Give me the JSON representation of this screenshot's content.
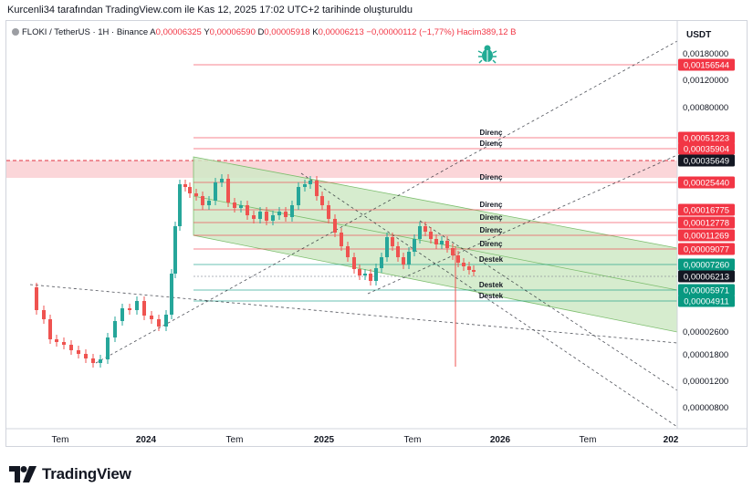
{
  "caption": "Kurcenli34 tarafından TradingView.com ile Kas 12, 2025 17:02 UTC+2 tarihinde oluşturuldu",
  "symbol": {
    "name": "FLOKI / TetherUS · 1H · Binance",
    "o_label": "A",
    "o_value": "0,00006325",
    "h_label": "Y",
    "h_value": "0,00006590",
    "l_label": "D",
    "l_value": "0,00005918",
    "c_label": "K",
    "c_value": "0,00006213",
    "change": "−0,00000112 (−1,77%)",
    "vol_label": "Hacim",
    "vol_value": "389,12 B"
  },
  "currency": "USDT",
  "brand": "TradingView",
  "colors": {
    "resistance": "#f23645",
    "support": "#089981",
    "channel_fill": "#cfe9c6",
    "zone_fill": "#fbd6d9",
    "candle_up": "#26a69a",
    "candle_down": "#ef5350",
    "current_price": "#131722"
  },
  "chart_data": {
    "type": "candlestick",
    "scale": "log",
    "ylim": [
      5e-06,
      0.0025
    ],
    "x_ticks": [
      "Tem",
      "2024",
      "Tem",
      "2025",
      "Tem",
      "2026",
      "Tem",
      "202"
    ],
    "y_ticks": [
      "0,00180000",
      "0,00120000",
      "0,00080000",
      "0,00002600",
      "0,00001800",
      "0,00001200",
      "0,00000800"
    ],
    "price_labels": [
      {
        "value": "0,00156544",
        "kind": "resistance"
      },
      {
        "value": "0,00051223",
        "kind": "resistance"
      },
      {
        "value": "0,00035904",
        "kind": "resistance"
      },
      {
        "value": "0,00035649",
        "kind": "current_high"
      },
      {
        "value": "0,00025440",
        "kind": "resistance"
      },
      {
        "value": "0,00016775",
        "kind": "resistance"
      },
      {
        "value": "0,00012778",
        "kind": "resistance"
      },
      {
        "value": "0,00011269",
        "kind": "resistance"
      },
      {
        "value": "0,00009077",
        "kind": "resistance"
      },
      {
        "value": "0,00007260",
        "kind": "support"
      },
      {
        "value": "0,00006213",
        "kind": "current"
      },
      {
        "value": "0,00005971",
        "kind": "support"
      },
      {
        "value": "0,00004911",
        "kind": "support"
      }
    ],
    "level_texts": [
      {
        "text": "Direnç",
        "level": "0,00051223"
      },
      {
        "text": "Direnç",
        "level": "0,00035904"
      },
      {
        "text": "Direnç",
        "level": "0,00025440"
      },
      {
        "text": "Direnç",
        "level": "0,00016775"
      },
      {
        "text": "Direnç",
        "level": "0,00012778"
      },
      {
        "text": "Direnç",
        "level": "0,00011269"
      },
      {
        "text": "Direnç",
        "level": "0,00009077"
      },
      {
        "text": "Destek",
        "level": "0,00007260"
      },
      {
        "text": "Destek",
        "level": "0,00005971"
      },
      {
        "text": "Destek",
        "level": "0,00004911"
      }
    ],
    "annotations": [
      "bug-icon",
      "descending-channel",
      "resistance-zone",
      "dashed-trendlines"
    ]
  }
}
